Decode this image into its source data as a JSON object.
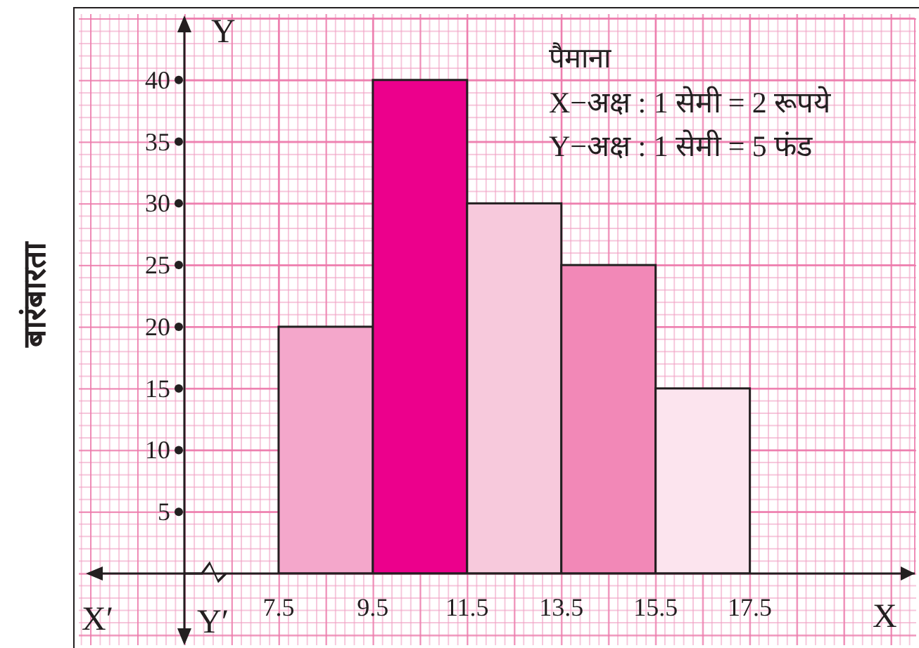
{
  "chart_data": {
    "type": "histogram",
    "ylabel": "बारंबारता",
    "bins": [
      7.5,
      9.5,
      11.5,
      13.5,
      15.5,
      17.5
    ],
    "values": [
      20,
      40,
      30,
      25,
      15
    ],
    "colors": [
      "#f4a7cb",
      "#ec008c",
      "#f7c9dc",
      "#f288b7",
      "#fce4ee"
    ],
    "xlim": [
      5.5,
      21
    ],
    "ylim": [
      0,
      45
    ],
    "xticks": [
      7.5,
      9.5,
      11.5,
      13.5,
      15.5,
      17.5
    ],
    "yticks": [
      5,
      10,
      15,
      20,
      25,
      30,
      35,
      40
    ],
    "grid": true,
    "legend": false,
    "annotations": [
      "पैमाना",
      "X−अक्ष : 1 सेमी = 2 रूपये",
      "Y−अक्ष : 1 सेमी = 5 फंड",
      "X",
      "X′",
      "Y",
      "Y′"
    ]
  }
}
